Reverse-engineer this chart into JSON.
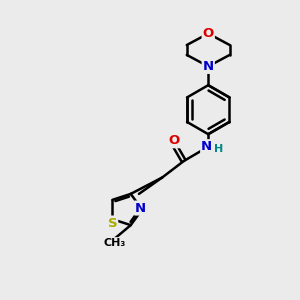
{
  "background_color": "#ebebeb",
  "atom_colors": {
    "C": "#000000",
    "N": "#0000cc",
    "O": "#dd0000",
    "S": "#aaaa00",
    "H": "#008888"
  },
  "bond_color": "#000000",
  "bond_width": 1.8,
  "figsize": [
    3.0,
    3.0
  ],
  "dpi": 100
}
